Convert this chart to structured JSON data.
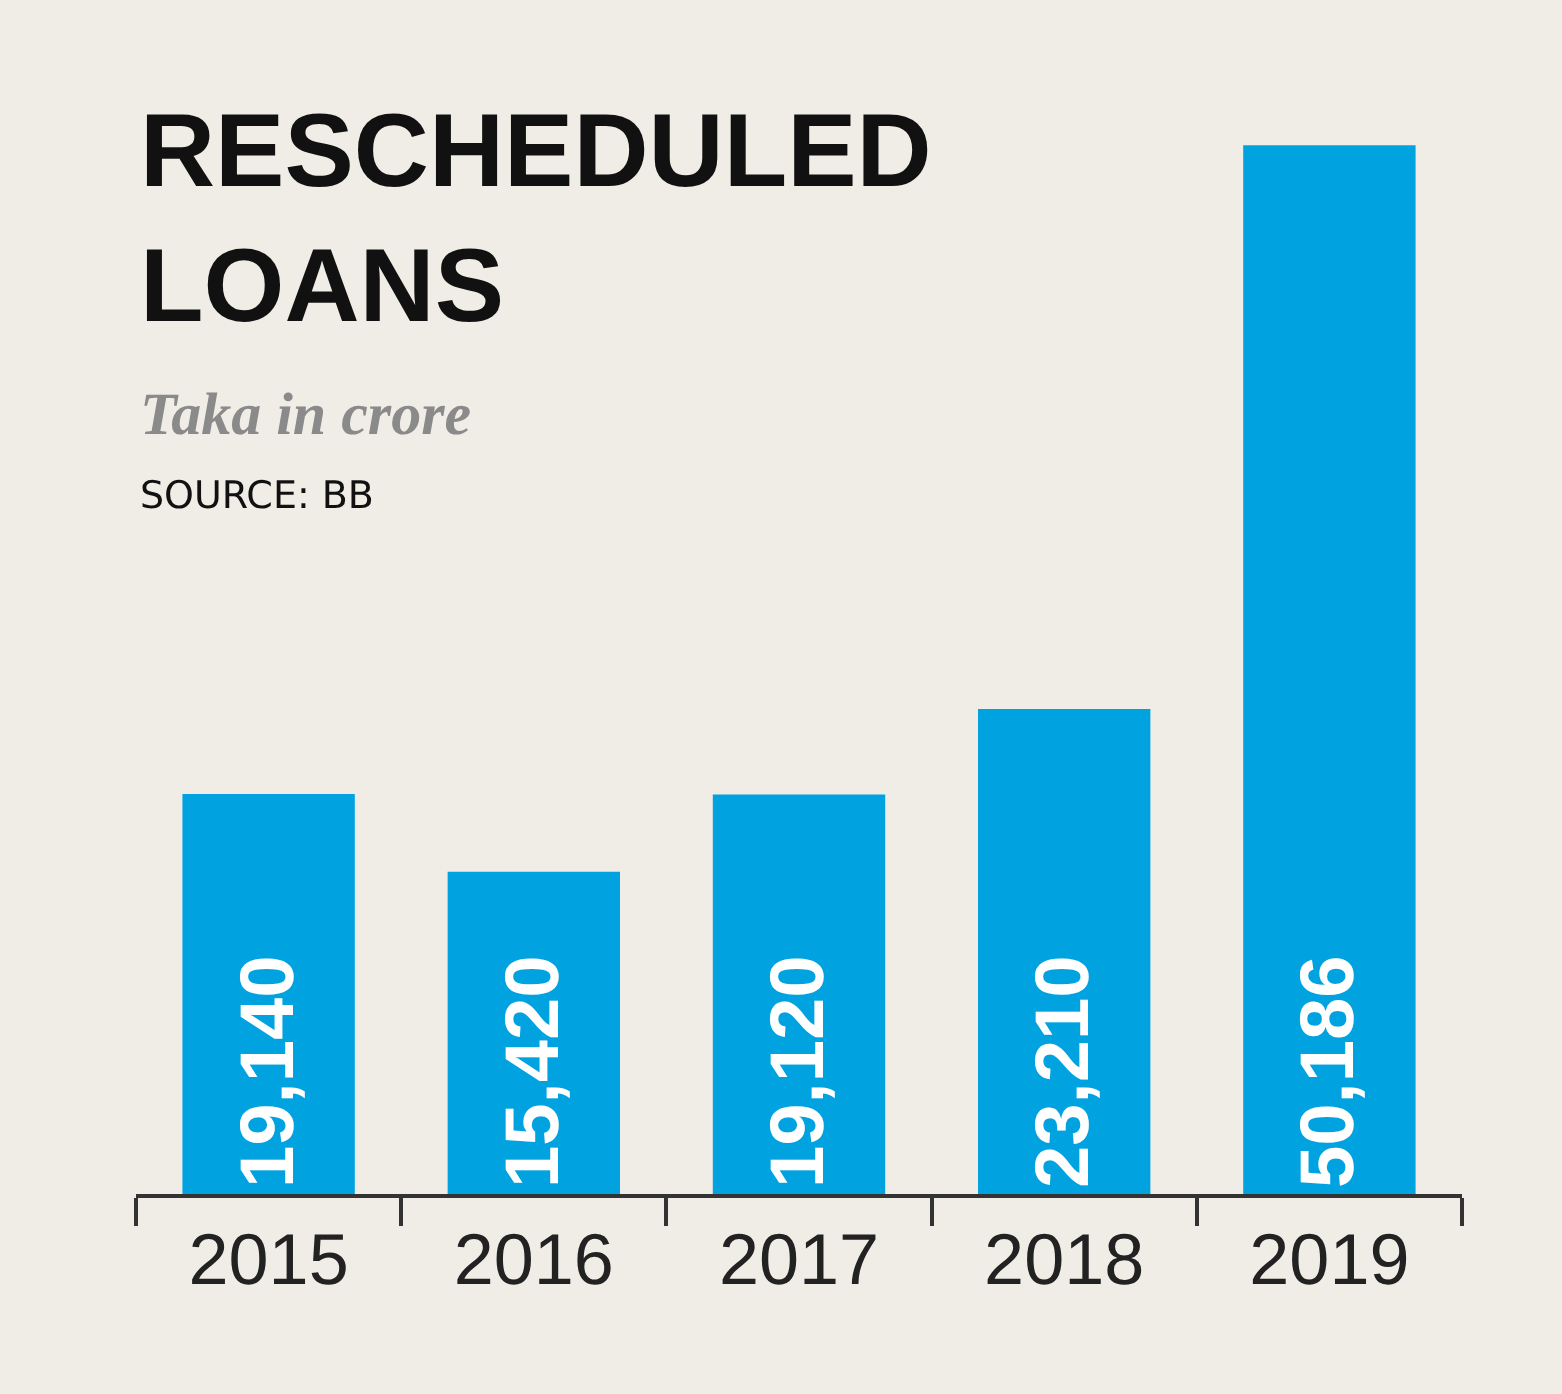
{
  "chart_data": {
    "type": "bar",
    "title": "RESCHEDULED LOANS",
    "subtitle": "Taka in crore",
    "annotations": [
      "SOURCE: BB"
    ],
    "categories": [
      "2015",
      "2016",
      "2017",
      "2018",
      "2019"
    ],
    "values": [
      19140,
      15420,
      19120,
      23210,
      50186
    ],
    "value_labels": [
      "19,140",
      "15,420",
      "19,120",
      "23,210",
      "50,186"
    ],
    "color": "#00a3e0",
    "grid": false
  }
}
